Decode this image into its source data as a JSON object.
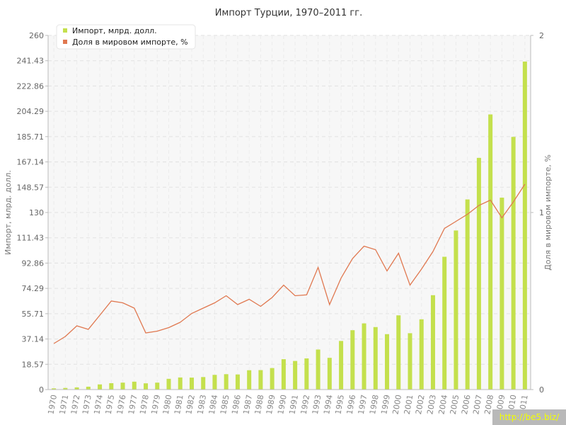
{
  "chart_data": {
    "type": "bar",
    "title": "Импорт Турции, 1970–2011 гг.",
    "ylabel": "Импорт, млрд. долл.",
    "y2label": "Доля в мировом импорте, %",
    "ylim": [
      0,
      260
    ],
    "y2lim": [
      0,
      2
    ],
    "y_ticks": [
      "0",
      "18.57",
      "37.14",
      "55.71",
      "74.29",
      "92.86",
      "111.43",
      "130",
      "148.57",
      "167.14",
      "185.71",
      "204.29",
      "222.86",
      "241.43",
      "260"
    ],
    "y2_ticks": [
      "0",
      "1",
      "2"
    ],
    "grid": true,
    "legend_position": "top-left",
    "categories": [
      "1970",
      "1971",
      "1972",
      "1973",
      "1974",
      "1975",
      "1976",
      "1977",
      "1978",
      "1979",
      "1980",
      "1981",
      "1982",
      "1983",
      "1984",
      "1985",
      "1986",
      "1987",
      "1988",
      "1989",
      "1990",
      "1991",
      "1992",
      "1993",
      "1994",
      "1995",
      "1996",
      "1997",
      "1998",
      "1999",
      "2000",
      "2001",
      "2002",
      "2003",
      "2004",
      "2005",
      "2006",
      "2007",
      "2008",
      "2009",
      "2010",
      "2011"
    ],
    "series": [
      {
        "name": "Импорт, млрд. долл.",
        "type": "bar",
        "axis": "left",
        "color": "#c4e04d",
        "values": [
          0.9,
          1.2,
          1.6,
          2.1,
          3.8,
          4.7,
          5.1,
          5.8,
          4.6,
          5.1,
          7.9,
          8.9,
          8.8,
          9.2,
          10.8,
          11.3,
          11.1,
          14.2,
          14.3,
          15.8,
          22.3,
          21.0,
          22.9,
          29.4,
          23.3,
          35.7,
          43.6,
          48.6,
          45.9,
          40.7,
          54.5,
          41.4,
          51.6,
          69.3,
          97.5,
          116.8,
          139.6,
          170.1,
          202.0,
          140.9,
          185.5,
          240.8
        ]
      },
      {
        "name": "Доля в мировом импорте, %",
        "type": "line",
        "axis": "right",
        "color": "#e07850",
        "values": [
          0.26,
          0.3,
          0.36,
          0.34,
          0.42,
          0.5,
          0.49,
          0.46,
          0.32,
          0.33,
          0.35,
          0.38,
          0.43,
          0.46,
          0.49,
          0.53,
          0.48,
          0.51,
          0.47,
          0.52,
          0.59,
          0.53,
          0.535,
          0.69,
          0.48,
          0.63,
          0.74,
          0.81,
          0.79,
          0.67,
          0.77,
          0.59,
          0.68,
          0.78,
          0.91,
          0.95,
          0.99,
          1.04,
          1.07,
          0.97,
          1.06,
          1.16
        ]
      }
    ]
  },
  "watermark": "http://be5.biz/"
}
